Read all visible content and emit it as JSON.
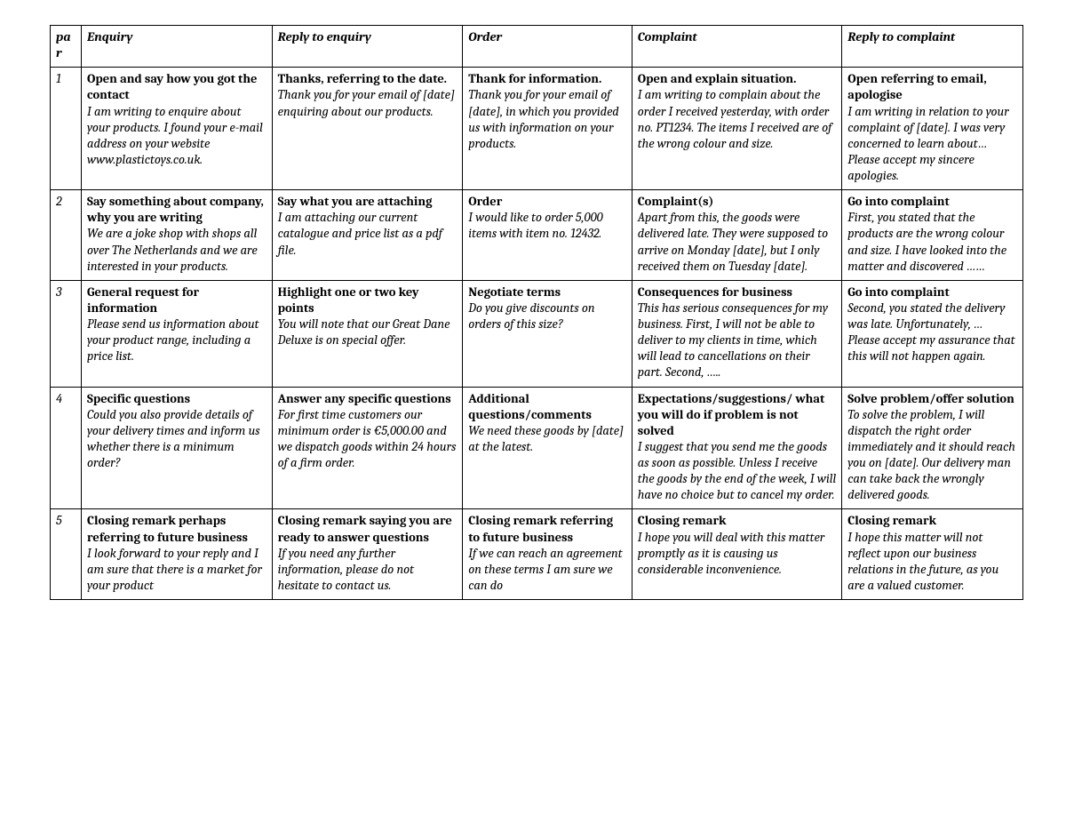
{
  "table": {
    "border_color": "#000000",
    "background_color": "#ffffff",
    "text_color": "#000000",
    "font_family": "Cambria-serif",
    "col_widths_pct": [
      3.2,
      19.6,
      19.6,
      17.4,
      21.6,
      18.6
    ],
    "header_fontsize": 14.5,
    "body_fontsize": 14.5,
    "columns": [
      "par",
      "Enquiry",
      "Reply to enquiry",
      "Order",
      "Complaint",
      "Reply to complaint"
    ],
    "rows": [
      {
        "par": "1",
        "cells": [
          {
            "bold": "Open and say how you got the contact",
            "italic": "I am writing to enquire about your products. I found your e-mail address on your website www.plastictoys.co.uk."
          },
          {
            "bold": "Thanks, referring to the date.",
            "italic": "Thank you for your email of [date] enquiring about our products."
          },
          {
            "bold": "Thank for information.",
            "italic": "Thank you for your email of [date], in which you provided us with information on your products."
          },
          {
            "bold": "Open and explain situation.",
            "italic": "I am writing to complain about the order I received yesterday, with order no. PT1234. The items I received are of the wrong colour and size."
          },
          {
            "bold": "Open referring to email, apologise",
            "italic": "I am writing in relation to your complaint of [date].   I was very concerned to learn about… Please accept my sincere apologies."
          }
        ]
      },
      {
        "par": "2",
        "cells": [
          {
            "bold": "Say something about company, why you are writing",
            "italic": "We are a joke shop with shops all over The Netherlands and we are interested in your products."
          },
          {
            "bold": "Say what you are attaching",
            "italic": "I am attaching our current catalogue and price list as a pdf file."
          },
          {
            "bold": "Order",
            "italic": "I would like to order 5,000 items with item no. 12432."
          },
          {
            "bold": "Complaint(s)",
            "italic": "Apart from this, the goods were delivered late. They were supposed to arrive on Monday [date], but I only received them on Tuesday [date]."
          },
          {
            "bold": "Go into complaint",
            "italic": "First, you stated that the products are the wrong colour and size. I have looked into the matter and discovered ……"
          }
        ]
      },
      {
        "par": "3",
        "cells": [
          {
            "bold": "General request for information",
            "italic": "Please send us information about your product range, including a price list."
          },
          {
            "bold": "Highlight one or two key points",
            "italic": "You will note that our Great Dane Deluxe is on special offer."
          },
          {
            "bold": "Negotiate terms",
            "italic": "Do you give discounts on orders of this size?"
          },
          {
            "bold": "Consequences for business",
            "italic": "This has serious consequences for my business. First, I will not be able to deliver to my clients in time, which will lead to cancellations on their part. Second, ….."
          },
          {
            "bold": "Go into complaint",
            "italic": "Second, you stated the delivery was late. Unfortunately, … Please accept my assurance that this will not happen again."
          }
        ]
      },
      {
        "par": "4",
        "cells": [
          {
            "bold": "Specific questions",
            "italic": "Could you also provide details of your delivery times and inform us whether there is a minimum order?"
          },
          {
            "bold": "Answer any specific questions",
            "italic": "For first time customers our minimum order is €5,000.00 and we dispatch goods within 24 hours of a firm order."
          },
          {
            "bold": "Additional questions/comments",
            "italic": "We need these goods by [date] at the latest."
          },
          {
            "bold": "Expectations/suggestions/ what you will do if problem is not solved",
            "italic": "I suggest that you send me the goods as soon as possible. Unless I receive the goods by the end of the week, I will have no choice but to cancel my order."
          },
          {
            "bold": "Solve problem/offer solution",
            "italic": "To solve the problem, I will dispatch the right order immediately and it should reach you on [date]. Our delivery man can take back the wrongly delivered goods."
          }
        ]
      },
      {
        "par": "5",
        "cells": [
          {
            "bold": "Closing remark perhaps referring to future business",
            "italic": "I look forward to your reply and I am sure that there is a market for your product"
          },
          {
            "bold": "Closing remark saying you are ready to answer questions",
            "italic": "If you need any further information, please do not hesitate to contact us."
          },
          {
            "bold": "Closing remark referring to future business",
            "italic": "If we can reach an agreement on these terms I am sure we can do"
          },
          {
            "bold": "Closing remark",
            "italic": "I hope you will deal with this matter promptly as it is causing us considerable inconvenience."
          },
          {
            "bold": "Closing remark",
            "italic": "I hope this matter will not reflect upon our business relations in the future, as you are a valued customer."
          }
        ]
      }
    ]
  }
}
